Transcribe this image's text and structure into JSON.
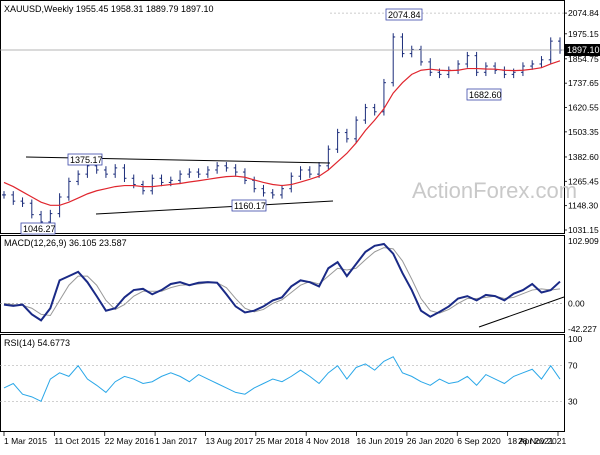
{
  "chart_data": [
    {
      "panel": "price",
      "type": "line",
      "title": "XAUUSD,Weekly  1955.45 1958.31 1889.79 1897.10",
      "ohlc": {
        "open": 1955.45,
        "high": 1958.31,
        "low": 1889.79,
        "close": 1897.1
      },
      "watermark": "ActionForex.com",
      "ylim": [
        1031.15,
        2109.0
      ],
      "y_ticks": [
        "2074.84",
        "1975.15",
        "1897.10",
        "1854.75",
        "1737.65",
        "1620.55",
        "1503.35",
        "1382.60",
        "1265.45",
        "1148.30",
        "1031.15"
      ],
      "current_price": "1897.10",
      "x": [
        0,
        6,
        12,
        18,
        24,
        30,
        36,
        42,
        48,
        54,
        60,
        66,
        72,
        78,
        84,
        90,
        96,
        102,
        108,
        114,
        120,
        126,
        132,
        138,
        144,
        150,
        156,
        162,
        168,
        174,
        180,
        186,
        192,
        198,
        204,
        210,
        216,
        222,
        228,
        234,
        240,
        246,
        252,
        258,
        264,
        270,
        276,
        282,
        288,
        294,
        300,
        306,
        312,
        318,
        324,
        330,
        336,
        342,
        348,
        354,
        360
      ],
      "series": [
        {
          "style": "ohlc-bars",
          "values": [
            1200,
            1170,
            1160,
            1105,
            1070,
            1110,
            1190,
            1265,
            1300,
            1340,
            1320,
            1300,
            1330,
            1280,
            1250,
            1220,
            1280,
            1260,
            1270,
            1300,
            1310,
            1300,
            1320,
            1340,
            1330,
            1310,
            1270,
            1230,
            1210,
            1200,
            1230,
            1290,
            1320,
            1300,
            1340,
            1420,
            1500,
            1470,
            1560,
            1620,
            1600,
            1740,
            1960,
            1880,
            1900,
            1840,
            1790,
            1780,
            1800,
            1830,
            1870,
            1790,
            1820,
            1800,
            1780,
            1790,
            1820,
            1830,
            1850,
            1940,
            1897
          ]
        },
        {
          "style": "moving-average",
          "values": [
            1260,
            1240,
            1215,
            1190,
            1165,
            1150,
            1150,
            1165,
            1185,
            1205,
            1220,
            1230,
            1240,
            1245,
            1245,
            1240,
            1240,
            1245,
            1250,
            1255,
            1262,
            1268,
            1275,
            1282,
            1288,
            1290,
            1285,
            1272,
            1260,
            1250,
            1245,
            1250,
            1262,
            1275,
            1290,
            1320,
            1360,
            1400,
            1450,
            1510,
            1560,
            1615,
            1690,
            1740,
            1780,
            1800,
            1805,
            1800,
            1798,
            1800,
            1808,
            1808,
            1806,
            1805,
            1800,
            1798,
            1800,
            1805,
            1812,
            1830,
            1845
          ]
        }
      ],
      "annotations": [
        "1375.17",
        "1160.17",
        "1046.27",
        "2074.84",
        "1682.60"
      ]
    },
    {
      "panel": "macd",
      "type": "line",
      "title": "MACD(12,26,9) 36.105 23.587",
      "ylim": [
        -42.227,
        102.909
      ],
      "y_ticks": [
        "102.909",
        "0.00",
        "-42.227"
      ],
      "x": [
        0,
        6,
        12,
        18,
        24,
        30,
        36,
        42,
        48,
        54,
        60,
        66,
        72,
        78,
        84,
        90,
        96,
        102,
        108,
        114,
        120,
        126,
        132,
        138,
        144,
        150,
        156,
        162,
        168,
        174,
        180,
        186,
        192,
        198,
        204,
        210,
        216,
        222,
        228,
        234,
        240,
        246,
        252,
        258,
        264,
        270,
        276,
        282,
        288,
        294,
        300,
        306,
        312,
        318,
        324,
        330,
        336,
        342,
        348,
        354,
        360
      ],
      "series": [
        {
          "style": "macd-line",
          "values": [
            -2,
            -4,
            -2,
            -18,
            -28,
            -8,
            38,
            45,
            52,
            35,
            12,
            -12,
            -8,
            10,
            22,
            24,
            15,
            22,
            32,
            35,
            30,
            34,
            35,
            34,
            15,
            -5,
            -15,
            -12,
            -5,
            5,
            10,
            28,
            38,
            35,
            28,
            58,
            68,
            45,
            65,
            85,
            95,
            98,
            82,
            50,
            22,
            -12,
            -22,
            -14,
            -5,
            8,
            12,
            5,
            14,
            12,
            5,
            16,
            22,
            32,
            18,
            22,
            36
          ]
        },
        {
          "style": "signal-line",
          "values": [
            0,
            -2,
            -3,
            -8,
            -18,
            -20,
            5,
            30,
            45,
            45,
            30,
            5,
            -10,
            -2,
            12,
            20,
            20,
            20,
            26,
            30,
            31,
            32,
            34,
            34,
            26,
            8,
            -8,
            -14,
            -10,
            0,
            6,
            18,
            30,
            36,
            32,
            45,
            58,
            55,
            58,
            72,
            85,
            92,
            90,
            70,
            40,
            8,
            -12,
            -16,
            -10,
            0,
            8,
            8,
            10,
            12,
            8,
            10,
            16,
            22,
            24,
            22,
            24
          ]
        }
      ]
    },
    {
      "panel": "rsi",
      "type": "line",
      "title": "RSI(14) 54.6773",
      "ylim": [
        0,
        100
      ],
      "y_ticks": [
        "100",
        "70",
        "30"
      ],
      "x": [
        0,
        6,
        12,
        18,
        24,
        30,
        36,
        42,
        48,
        54,
        60,
        66,
        72,
        78,
        84,
        90,
        96,
        102,
        108,
        114,
        120,
        126,
        132,
        138,
        144,
        150,
        156,
        162,
        168,
        174,
        180,
        186,
        192,
        198,
        204,
        210,
        216,
        222,
        228,
        234,
        240,
        246,
        252,
        258,
        264,
        270,
        276,
        282,
        288,
        294,
        300,
        306,
        312,
        318,
        324,
        330,
        336,
        342,
        348,
        354,
        360
      ],
      "series": [
        {
          "style": "rsi-line",
          "values": [
            45,
            50,
            38,
            35,
            30,
            55,
            62,
            58,
            70,
            55,
            48,
            40,
            52,
            58,
            55,
            50,
            52,
            58,
            62,
            58,
            52,
            60,
            55,
            50,
            45,
            40,
            38,
            45,
            50,
            55,
            52,
            58,
            65,
            58,
            50,
            62,
            70,
            55,
            68,
            72,
            65,
            75,
            80,
            62,
            58,
            52,
            48,
            55,
            50,
            52,
            58,
            48,
            60,
            55,
            50,
            58,
            62,
            66,
            55,
            70,
            55
          ]
        }
      ]
    }
  ],
  "x_axis_labels": [
    "1 Mar 2015",
    "11 Oct 2015",
    "22 May 2016",
    "1 Jan 2017",
    "13 Aug 2017",
    "25 Mar 2018",
    "4 Nov 2018",
    "16 Jun 2019",
    "26 Jan 2020",
    "6 Sep 2020",
    "18 Apr 2021",
    "28 Nov 2021"
  ],
  "colors": {
    "price_bars": "#1b2c7a",
    "moving_average": "#e0262e",
    "macd_line": "#1a2a86",
    "signal_line": "#999999",
    "rsi_line": "#2aa7e8",
    "trendline": "#000000",
    "price_tag_bg": "#000000",
    "grid": "#c8c8c8",
    "watermark": "#c9c9c9"
  }
}
